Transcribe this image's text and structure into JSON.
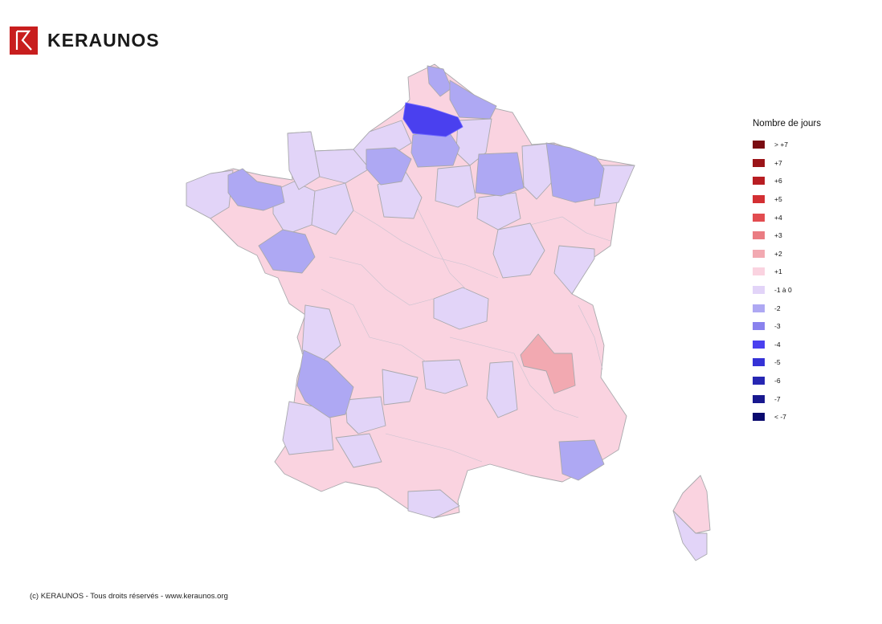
{
  "brand": {
    "name": "KERAUNOS",
    "accent": "#c81e1e"
  },
  "legend": {
    "title": "Nombre de jours",
    "items": [
      {
        "label": "> +7",
        "color": "#7a0c12"
      },
      {
        "label": "+7",
        "color": "#9b1418"
      },
      {
        "label": "+6",
        "color": "#b81d22"
      },
      {
        "label": "+5",
        "color": "#d32f33"
      },
      {
        "label": "+4",
        "color": "#e24c50"
      },
      {
        "label": "+3",
        "color": "#ea7c82"
      },
      {
        "label": "+2",
        "color": "#f2a9b1"
      },
      {
        "label": "+1",
        "color": "#fad3e0"
      },
      {
        "label": "-1 à 0",
        "color": "#e2d4f8"
      },
      {
        "label": "-2",
        "color": "#aea8f3"
      },
      {
        "label": "-3",
        "color": "#8a82ee"
      },
      {
        "label": "-4",
        "color": "#4a40ef"
      },
      {
        "label": "-5",
        "color": "#3532d6"
      },
      {
        "label": "-6",
        "color": "#2626b3"
      },
      {
        "label": "-7",
        "color": "#18188f"
      },
      {
        "label": "< -7",
        "color": "#0a0a6e"
      }
    ]
  },
  "footer": {
    "text": "(c) KERAUNOS - Tous droits réservés - www.keraunos.org"
  }
}
